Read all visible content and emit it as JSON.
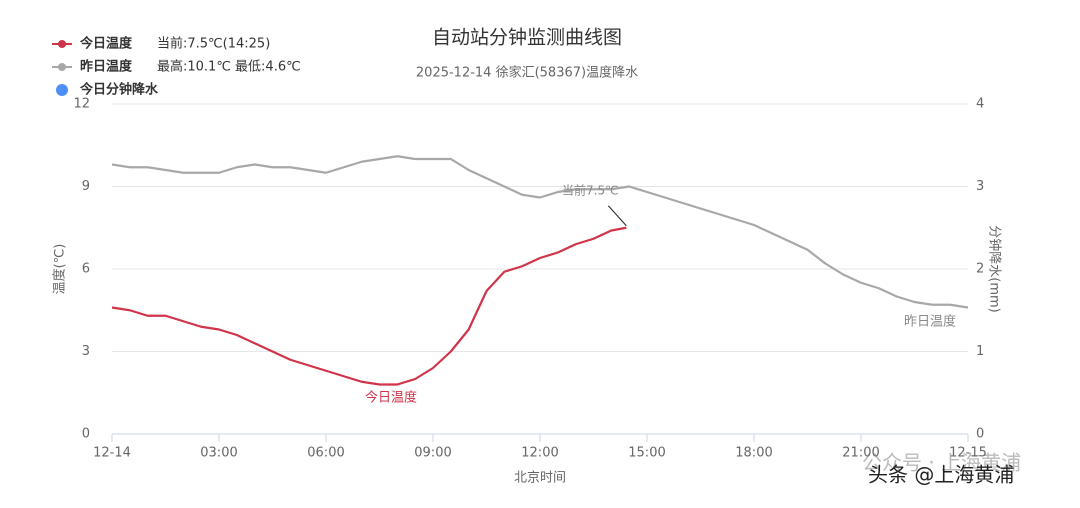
{
  "chart_data": {
    "type": "line",
    "title": "自动站分钟监测曲线图",
    "subtitle": "2025-12-14 徐家汇(58367)温度降水",
    "xlabel": "北京时间",
    "ylabel": "温度(℃)",
    "y2label": "分钟降水(mm)",
    "xlim": [
      0,
      24
    ],
    "xticks": [
      {
        "value": 0,
        "label": "12-14"
      },
      {
        "value": 3,
        "label": "03:00"
      },
      {
        "value": 6,
        "label": "06:00"
      },
      {
        "value": 9,
        "label": "09:00"
      },
      {
        "value": 12,
        "label": "12:00"
      },
      {
        "value": 15,
        "label": "15:00"
      },
      {
        "value": 18,
        "label": "18:00"
      },
      {
        "value": 21,
        "label": "21:00"
      },
      {
        "value": 24,
        "label": "12-15"
      }
    ],
    "ylim": [
      0,
      12
    ],
    "yticks": [
      0,
      3,
      6,
      9,
      12
    ],
    "y2lim": [
      0,
      4
    ],
    "y2ticks": [
      0,
      1,
      2,
      3,
      4
    ],
    "grid": true,
    "series": [
      {
        "name": "今日温度",
        "color": "#d0344a",
        "legend_note": "当前:7.5℃(14:25)",
        "line_label": "今日温度",
        "x": [
          0,
          0.5,
          1,
          1.5,
          2,
          2.5,
          3,
          3.5,
          4,
          4.5,
          5,
          5.5,
          6,
          6.5,
          7,
          7.5,
          8,
          8.5,
          9,
          9.5,
          10,
          10.5,
          11,
          11.5,
          12,
          12.5,
          13,
          13.5,
          14,
          14.42
        ],
        "values": [
          4.6,
          4.5,
          4.3,
          4.3,
          4.1,
          3.9,
          3.8,
          3.6,
          3.3,
          3.0,
          2.7,
          2.5,
          2.3,
          2.1,
          1.9,
          1.8,
          1.8,
          2.0,
          2.4,
          3.0,
          3.8,
          5.2,
          5.9,
          6.1,
          6.4,
          6.6,
          6.9,
          7.1,
          7.4,
          7.5
        ]
      },
      {
        "name": "昨日温度",
        "color": "#a8a8a8",
        "legend_note": "最高:10.1℃ 最低:4.6℃",
        "line_label": "昨日温度",
        "x": [
          0,
          0.5,
          1,
          1.5,
          2,
          2.5,
          3,
          3.5,
          4,
          4.5,
          5,
          5.5,
          6,
          6.5,
          7,
          7.5,
          8,
          8.5,
          9,
          9.5,
          10,
          10.5,
          11,
          11.5,
          12,
          12.5,
          13,
          13.5,
          14,
          14.5,
          15,
          15.5,
          16,
          16.5,
          17,
          17.5,
          18,
          18.5,
          19,
          19.5,
          20,
          20.5,
          21,
          21.5,
          22,
          22.5,
          23,
          23.5,
          24
        ],
        "values": [
          9.8,
          9.7,
          9.7,
          9.6,
          9.5,
          9.5,
          9.5,
          9.7,
          9.8,
          9.7,
          9.7,
          9.6,
          9.5,
          9.7,
          9.9,
          10.0,
          10.1,
          10.0,
          10.0,
          10.0,
          9.6,
          9.3,
          9.0,
          8.7,
          8.6,
          8.8,
          8.9,
          8.9,
          8.9,
          9.0,
          8.8,
          8.6,
          8.4,
          8.2,
          8.0,
          7.8,
          7.6,
          7.3,
          7.0,
          6.7,
          6.2,
          5.8,
          5.5,
          5.3,
          5.0,
          4.8,
          4.7,
          4.7,
          4.6
        ]
      },
      {
        "name": "今日分钟降水",
        "color": "#4e8ef7",
        "axis": "y2",
        "x": [],
        "values": []
      }
    ],
    "current_label": "当前7.5℃",
    "watermarks": [
      "公众号 · 上海黄浦",
      "头条 @上海黄浦"
    ]
  }
}
